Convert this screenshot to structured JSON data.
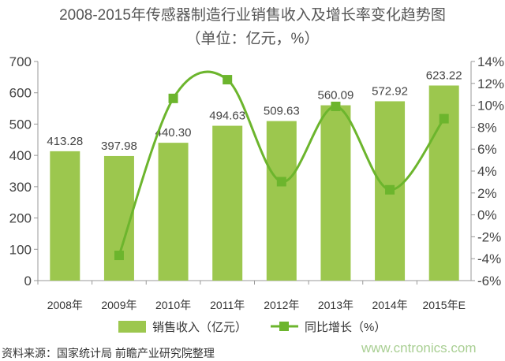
{
  "chart_data": {
    "type": "bar+line",
    "title": "2008-2015年传感器制造行业销售收入及增长率变化趋势图",
    "subtitle": "（单位：亿元，%）",
    "categories": [
      "2008年",
      "2009年",
      "2010年",
      "2011年",
      "2012年",
      "2013年",
      "2014年",
      "2015年E"
    ],
    "series": [
      {
        "name": "销售收入（亿元）",
        "type": "bar",
        "axis": "left",
        "color": "#9cc74e",
        "values": [
          413.28,
          397.98,
          440.3,
          494.63,
          509.63,
          560.09,
          572.92,
          623.22
        ],
        "labels": [
          "413.28",
          "397.98",
          "440.30",
          "494.63",
          "509.63",
          "560.09",
          "572.92",
          "623.22"
        ]
      },
      {
        "name": "同比增长（%）",
        "type": "line",
        "axis": "right",
        "color": "#6cb52d",
        "values": [
          null,
          -3.7,
          10.63,
          12.34,
          3.03,
          9.9,
          2.29,
          8.78
        ]
      }
    ],
    "y_left": {
      "range": [
        0,
        700
      ],
      "ticks": [
        "0",
        "100",
        "200",
        "300",
        "400",
        "500",
        "600",
        "700"
      ]
    },
    "y_right": {
      "range": [
        -6,
        14
      ],
      "ticks": [
        "-6%",
        "-4%",
        "-2%",
        "0%",
        "2%",
        "4%",
        "6%",
        "8%",
        "10%",
        "12%",
        "14%"
      ]
    },
    "grid": false,
    "legend": "bottom"
  },
  "source": "资料来源：国家统计局 前瞻产业研究院整理",
  "watermark": "www.cntronics.com"
}
